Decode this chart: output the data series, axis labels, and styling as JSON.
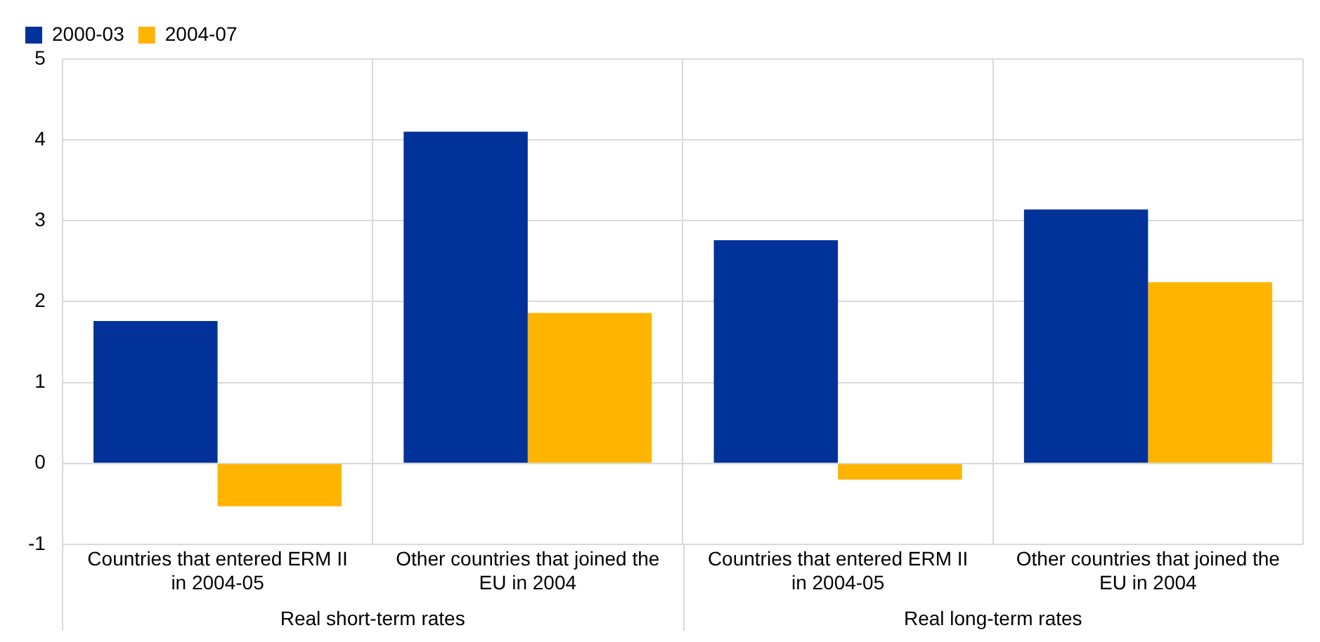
{
  "chart_data": {
    "type": "bar",
    "categories": [
      "Countries that entered ERM II in 2004-05",
      "Other countries that joined the EU in 2004",
      "Countries that entered ERM II in 2004-05",
      "Other countries that joined the EU in 2004"
    ],
    "series": [
      {
        "name": "2000-03",
        "color": "#003299",
        "values": [
          1.76,
          4.1,
          2.76,
          3.14
        ]
      },
      {
        "name": "2004-07",
        "color": "#ffb400",
        "values": [
          -0.53,
          1.86,
          -0.2,
          2.24
        ]
      }
    ],
    "ylim": [
      -1,
      5
    ],
    "yticks": [
      -1,
      0,
      1,
      2,
      3,
      4,
      5
    ],
    "grid": true,
    "legend": "top left",
    "annotations": [
      "Real short-term rates",
      "Real long-term rates"
    ]
  }
}
